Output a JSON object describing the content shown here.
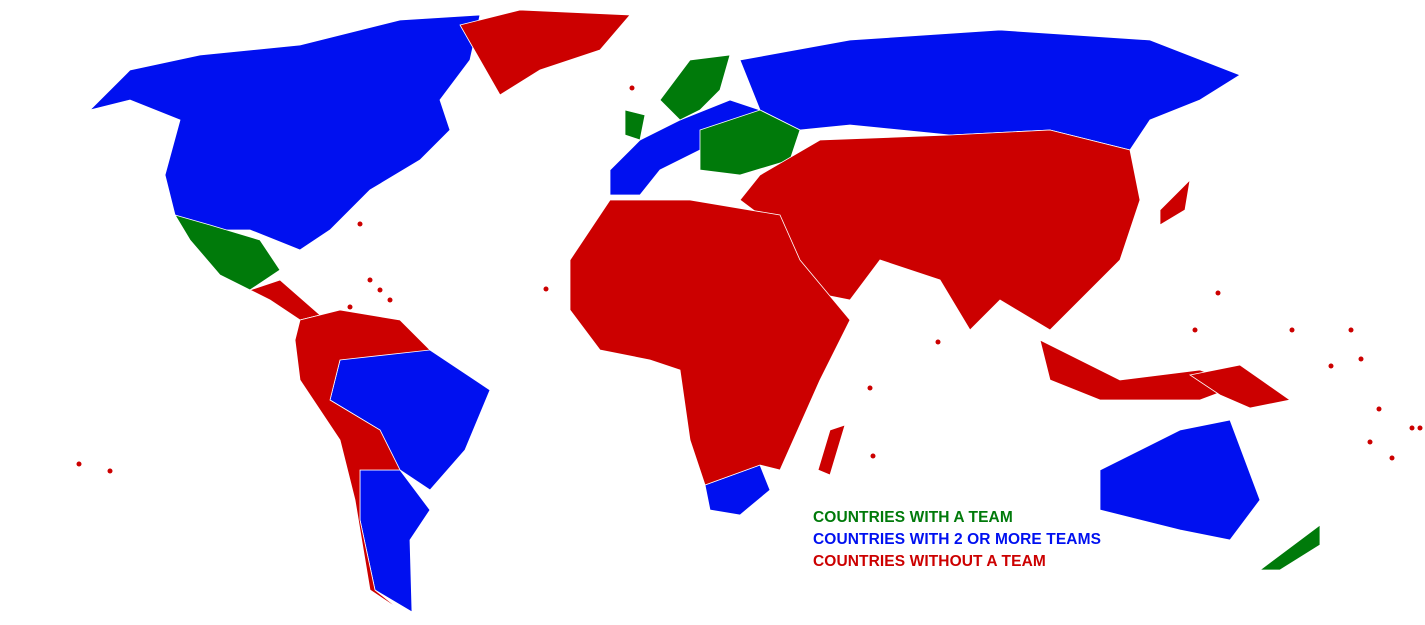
{
  "colors": {
    "one_team": "#007a0a",
    "multiple_teams": "#0010f0",
    "no_team": "#cc0000",
    "background": "#ffffff"
  },
  "legend": {
    "items": [
      {
        "key": "one_team",
        "label": "COUNTRIES WITH A TEAM"
      },
      {
        "key": "multiple_teams",
        "label": "COUNTRIES WITH 2 OR MORE TEAMS"
      },
      {
        "key": "no_team",
        "label": "COUNTRIES WITHOUT A TEAM"
      }
    ]
  },
  "regions": {
    "one_team": [
      "Mexico",
      "Scandinavia",
      "United Kingdom",
      "Eastern Europe",
      "New Zealand"
    ],
    "multiple_teams": [
      "USA/Canada",
      "Brazil",
      "Argentina",
      "Western Europe",
      "Russia",
      "South Africa",
      "Australia"
    ],
    "no_team": [
      "Greenland",
      "Central America",
      "South America (rest)",
      "Africa",
      "Asia",
      "Middle East",
      "Japan",
      "Indonesia",
      "Papua New Guinea",
      "Madagascar"
    ]
  }
}
